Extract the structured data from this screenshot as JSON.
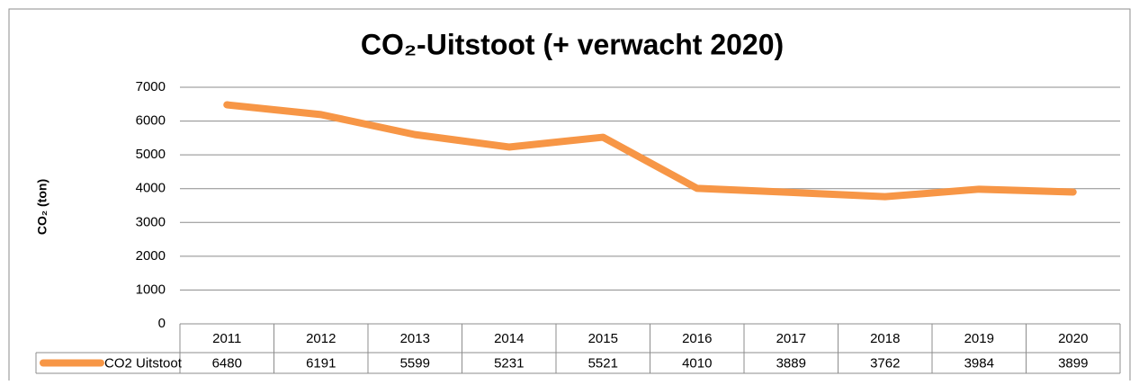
{
  "chart_data": {
    "type": "line",
    "title": "CO₂-Uitstoot (+ verwacht 2020)",
    "y_label": "CO₂ (ton)",
    "categories": [
      "2011",
      "2012",
      "2013",
      "2014",
      "2015",
      "2016",
      "2017",
      "2018",
      "2019",
      "2020"
    ],
    "series": [
      {
        "name": "CO2 Uitstoot",
        "color": "#f79646",
        "values": [
          6480,
          6191,
          5599,
          5231,
          5521,
          4010,
          3889,
          3762,
          3984,
          3899
        ]
      }
    ],
    "ylim": [
      0,
      7000
    ],
    "yticks": [
      0,
      1000,
      2000,
      3000,
      4000,
      5000,
      6000,
      7000
    ],
    "grid": true
  }
}
